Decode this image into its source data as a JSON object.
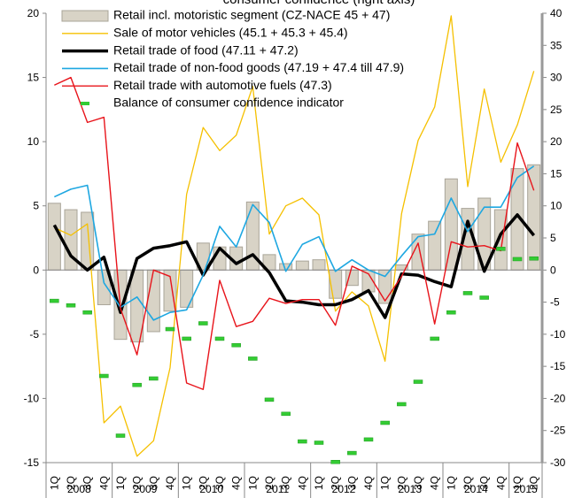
{
  "chart_data": {
    "type": "combo",
    "title": "consumer confidence (right axis)",
    "categories": [
      "1Q",
      "2Q",
      "3Q",
      "4Q",
      "1Q",
      "2Q",
      "3Q",
      "4Q",
      "1Q",
      "2Q",
      "3Q",
      "4Q",
      "1Q",
      "2Q",
      "3Q",
      "4Q",
      "1Q",
      "2Q",
      "3Q",
      "4Q",
      "1Q",
      "2Q",
      "3Q",
      "4Q",
      "1Q",
      "2Q",
      "3Q",
      "4Q",
      "1Q",
      "2Q"
    ],
    "years": [
      "2008",
      "2009",
      "2010",
      "2011",
      "2012",
      "2013",
      "2014",
      "2015"
    ],
    "ylim": [
      -15,
      20
    ],
    "yticks": [
      -15,
      -10,
      -5,
      0,
      5,
      10,
      15,
      20
    ],
    "y2lim": [
      -30,
      40
    ],
    "y2ticks": [
      -30,
      -25,
      -20,
      -15,
      -10,
      -5,
      0,
      5,
      10,
      15,
      20,
      25,
      30,
      35,
      40
    ],
    "legend": "upper left",
    "series": [
      {
        "name": "Retail incl. motoristic segment (CZ-NACE 45 + 47)",
        "type": "bar",
        "color": "#d8d3c6",
        "values": [
          5.2,
          4.7,
          4.5,
          -2.7,
          -5.4,
          -5.6,
          -4.8,
          -3.2,
          -2.9,
          2.1,
          1.8,
          1.8,
          5.3,
          1.2,
          0.5,
          0.7,
          0.8,
          -2.2,
          -1.2,
          -1.7,
          -2.6,
          0.4,
          2.8,
          3.8,
          7.1,
          4.8,
          5.6,
          4.7,
          7.9,
          8.2
        ]
      },
      {
        "name": "Sale of motor vehicles (45.1 + 45.3 + 45.4)",
        "type": "line",
        "color": "#f5c000",
        "values": [
          3.3,
          2.7,
          3.6,
          -11.9,
          -10.6,
          -14.5,
          -13.3,
          -7.6,
          5.9,
          11.1,
          9.3,
          10.5,
          14.3,
          2.8,
          5.0,
          5.6,
          4.3,
          -3.2,
          -1.7,
          -2.8,
          -7.1,
          4.4,
          10.1,
          12.7,
          19.8,
          6.5,
          14.1,
          8.4,
          11.3,
          15.5
        ]
      },
      {
        "name": "Retail trade of food (47.11 + 47.2)",
        "type": "line",
        "color": "#000000",
        "values": [
          3.5,
          1.1,
          0.0,
          1.0,
          -3.3,
          0.9,
          1.7,
          1.9,
          2.2,
          -0.4,
          1.7,
          0.5,
          1.2,
          -0.2,
          -2.4,
          -2.5,
          -2.7,
          -2.7,
          -2.3,
          -1.6,
          -3.7,
          -0.3,
          -0.4,
          -0.9,
          -1.3,
          3.8,
          -0.1,
          2.8,
          4.3,
          2.7
        ]
      },
      {
        "name": "Retail trade of non-food goods (47.19 + 47.4 till 47.9)",
        "type": "line",
        "color": "#1ea7e1",
        "values": [
          5.7,
          6.3,
          6.6,
          -1.0,
          -2.9,
          -2.1,
          -3.9,
          -3.3,
          -3.1,
          -0.4,
          3.4,
          1.8,
          5.1,
          3.7,
          -0.1,
          2.0,
          2.6,
          -0.1,
          0.8,
          0.0,
          -0.5,
          1.1,
          2.6,
          2.8,
          5.6,
          3.0,
          4.9,
          4.9,
          7.2,
          8.1
        ]
      },
      {
        "name": "Retail trade with automotive fuels (47.3)",
        "type": "line",
        "color": "#e8141b",
        "values": [
          14.4,
          15.0,
          11.5,
          11.9,
          -3.0,
          -6.6,
          0.0,
          -0.5,
          -8.8,
          -9.3,
          -0.8,
          -4.4,
          -4.0,
          -2.2,
          -2.6,
          -2.3,
          -2.3,
          -4.3,
          0.3,
          -0.3,
          -2.4,
          -0.5,
          2.1,
          -4.2,
          2.2,
          1.8,
          1.9,
          1.5,
          9.9,
          6.2
        ]
      },
      {
        "name": "Balance of consumer confidence indicator",
        "type": "marker",
        "axis": "y2",
        "color": "#33cc33",
        "values": [
          -4.8,
          -5.5,
          -6.6,
          -16.5,
          -25.8,
          -17.9,
          -16.9,
          -9.2,
          -10.7,
          -8.3,
          -10.7,
          -11.7,
          -13.8,
          -20.2,
          -22.4,
          -26.7,
          -26.9,
          -29.9,
          -28.5,
          -26.4,
          -23.8,
          -20.9,
          -17.4,
          -10.7,
          -6.6,
          -3.6,
          -4.3,
          3.3,
          1.7,
          1.8
        ]
      }
    ]
  }
}
